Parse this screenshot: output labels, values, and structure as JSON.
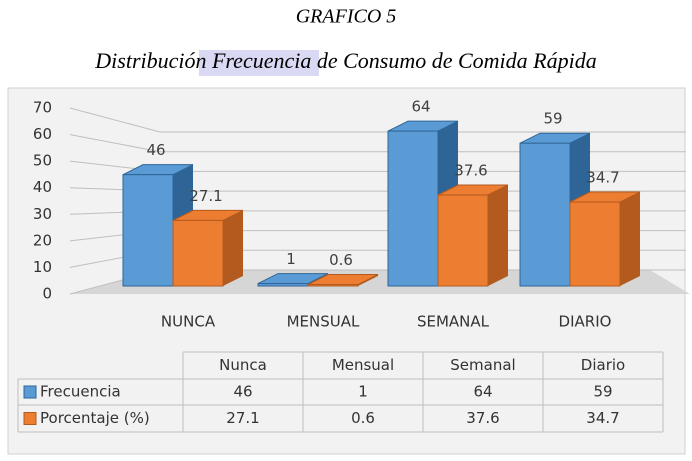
{
  "chart_data": {
    "type": "bar3d",
    "title": "GRAFICO 5",
    "subtitle": "Distribución Frecuencia de Consumo de Comida Rápida",
    "categories": [
      "NUNCA",
      "MENSUAL",
      "SEMANAL",
      "DIARIO"
    ],
    "series": [
      {
        "name": "Frecuencia",
        "color": "#5b9bd5",
        "side": "#2f6596",
        "values": [
          46,
          1,
          64,
          59
        ]
      },
      {
        "name": "Porcentaje (%)",
        "color": "#ed7d31",
        "side": "#b35a1e",
        "values": [
          27.1,
          0.6,
          37.6,
          34.7
        ]
      }
    ],
    "ylim": [
      0,
      70
    ],
    "yticks": [
      0,
      10,
      20,
      30,
      40,
      50,
      60,
      70
    ],
    "grid": true,
    "table": {
      "columns": [
        "Nunca",
        "Mensual",
        "Semanal",
        "Diario"
      ]
    }
  }
}
